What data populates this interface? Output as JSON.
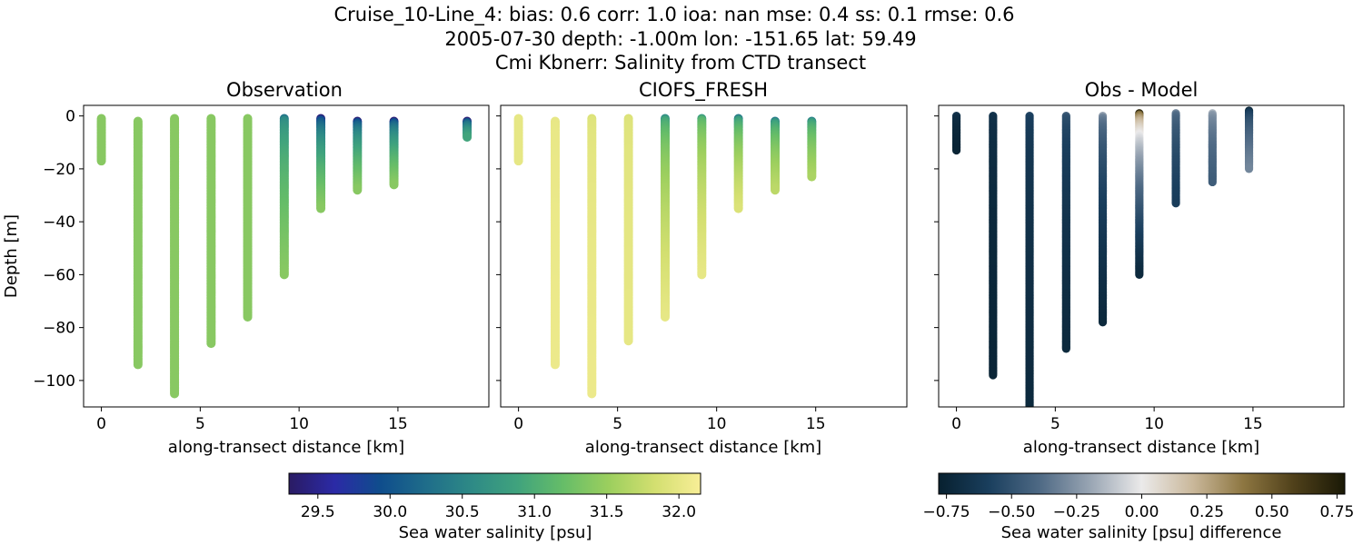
{
  "figure": {
    "title_line1": "Cruise_10-Line_4: bias: 0.6  corr: 1.0  ioa: nan  mse: 0.4  ss: 0.1  rmse: 0.6",
    "title_line2": "2005-07-30 depth: -1.00m lon: -151.65 lat: 59.49",
    "title_line3": "Cmi Kbnerr: Salinity from CTD transect"
  },
  "colorbars": {
    "salinity": {
      "label": "Sea water salinity [psu]",
      "range": [
        29.3,
        32.15
      ],
      "ticks": [
        "29.5",
        "30.0",
        "30.5",
        "31.0",
        "31.5",
        "32.0"
      ],
      "colormap": "haline",
      "stops": [
        "#2a1b63",
        "#2b2aa6",
        "#0f4d8c",
        "#1f6d8a",
        "#2e8a86",
        "#40a37d",
        "#66bd68",
        "#9ccf5e",
        "#d3df70",
        "#f8ee97"
      ]
    },
    "difference": {
      "label": "Sea water salinity [psu] difference",
      "range": [
        -0.78,
        0.78
      ],
      "ticks": [
        "−0.75",
        "−0.50",
        "−0.25",
        "0.00",
        "0.25",
        "0.50",
        "0.75"
      ],
      "colormap": "diff",
      "stops": [
        "#07202f",
        "#1a3f5e",
        "#4f6a85",
        "#9aa6b4",
        "#ebeaea",
        "#cab89b",
        "#8d7641",
        "#4f401a",
        "#1a1906"
      ]
    }
  },
  "chart_data": [
    {
      "type": "scatter",
      "title": "Observation",
      "xlabel": "along-transect distance [km]",
      "ylabel": "Depth [m]",
      "xlim": [
        -0.9,
        19.6
      ],
      "ylim": [
        -110,
        4
      ],
      "xticks": [
        "0",
        "5",
        "10",
        "15"
      ],
      "yticks": [
        "0",
        "−20",
        "−40",
        "−60",
        "−80",
        "−100"
      ],
      "colorbar": "salinity",
      "casts": [
        {
          "x": 0.0,
          "top": -1,
          "bottom": -17,
          "surface": 31.4,
          "deep": 31.4
        },
        {
          "x": 1.85,
          "top": -2,
          "bottom": -94,
          "surface": 31.4,
          "deep": 31.4
        },
        {
          "x": 3.7,
          "top": -1,
          "bottom": -105,
          "surface": 31.4,
          "deep": 31.4
        },
        {
          "x": 5.55,
          "top": -1,
          "bottom": -86,
          "surface": 31.4,
          "deep": 31.4
        },
        {
          "x": 7.4,
          "top": -1,
          "bottom": -76,
          "surface": 31.4,
          "deep": 31.4
        },
        {
          "x": 9.25,
          "top": -1,
          "bottom": -60,
          "surface": 30.3,
          "deep": 31.4
        },
        {
          "x": 11.1,
          "top": -1,
          "bottom": -35,
          "surface": 29.4,
          "deep": 31.4
        },
        {
          "x": 12.95,
          "top": -2,
          "bottom": -28,
          "surface": 29.4,
          "deep": 31.4
        },
        {
          "x": 14.8,
          "top": -2,
          "bottom": -26,
          "surface": 29.4,
          "deep": 31.4
        },
        {
          "x": 18.5,
          "top": -2,
          "bottom": -8,
          "surface": 29.4,
          "deep": 30.9
        }
      ]
    },
    {
      "type": "scatter",
      "title": "CIOFS_FRESH",
      "xlabel": "along-transect distance [km]",
      "ylabel": "",
      "xlim": [
        -0.9,
        19.6
      ],
      "ylim": [
        -110,
        4
      ],
      "xticks": [
        "0",
        "5",
        "10",
        "15"
      ],
      "yticks": [],
      "colorbar": "salinity",
      "casts": [
        {
          "x": 0.0,
          "top": -1,
          "bottom": -17,
          "surface": 32.0,
          "deep": 32.0
        },
        {
          "x": 1.85,
          "top": -2,
          "bottom": -94,
          "surface": 32.0,
          "deep": 32.05
        },
        {
          "x": 3.7,
          "top": -1,
          "bottom": -105,
          "surface": 31.9,
          "deep": 32.05
        },
        {
          "x": 5.55,
          "top": -1,
          "bottom": -85,
          "surface": 31.9,
          "deep": 32.0
        },
        {
          "x": 7.4,
          "top": -1,
          "bottom": -76,
          "surface": 30.6,
          "deep": 32.0
        },
        {
          "x": 9.25,
          "top": -1,
          "bottom": -60,
          "surface": 30.8,
          "deep": 32.0
        },
        {
          "x": 11.1,
          "top": -1,
          "bottom": -35,
          "surface": 30.4,
          "deep": 31.9
        },
        {
          "x": 12.95,
          "top": -2,
          "bottom": -28,
          "surface": 30.4,
          "deep": 31.7
        },
        {
          "x": 14.8,
          "top": -2,
          "bottom": -23,
          "surface": 30.5,
          "deep": 31.6
        }
      ]
    },
    {
      "type": "scatter",
      "title": "Obs - Model",
      "xlabel": "along-transect distance [km]",
      "ylabel": "",
      "xlim": [
        -0.9,
        19.6
      ],
      "ylim": [
        -110,
        4
      ],
      "xticks": [
        "0",
        "5",
        "10",
        "15"
      ],
      "yticks": [],
      "colorbar": "difference",
      "casts": [
        {
          "x": 0.0,
          "top": 0,
          "bottom": -13,
          "surface": -0.65,
          "deep": -0.75
        },
        {
          "x": 1.85,
          "top": 0,
          "bottom": -98,
          "surface": -0.65,
          "deep": -0.75
        },
        {
          "x": 3.7,
          "top": 0,
          "bottom": -110,
          "surface": -0.55,
          "deep": -0.72
        },
        {
          "x": 5.55,
          "top": 0,
          "bottom": -88,
          "surface": -0.45,
          "deep": -0.72
        },
        {
          "x": 7.4,
          "top": 0,
          "bottom": -78,
          "surface": -0.2,
          "deep": -0.72
        },
        {
          "x": 9.25,
          "top": 1,
          "bottom": -60,
          "surface": 0.7,
          "deep": -0.72
        },
        {
          "x": 11.1,
          "top": 1,
          "bottom": -33,
          "surface": -0.3,
          "deep": -0.6
        },
        {
          "x": 12.95,
          "top": 1,
          "bottom": -25,
          "surface": -0.15,
          "deep": -0.45
        },
        {
          "x": 14.8,
          "top": 2,
          "bottom": -20,
          "surface": -0.75,
          "deep": -0.3
        }
      ]
    }
  ]
}
